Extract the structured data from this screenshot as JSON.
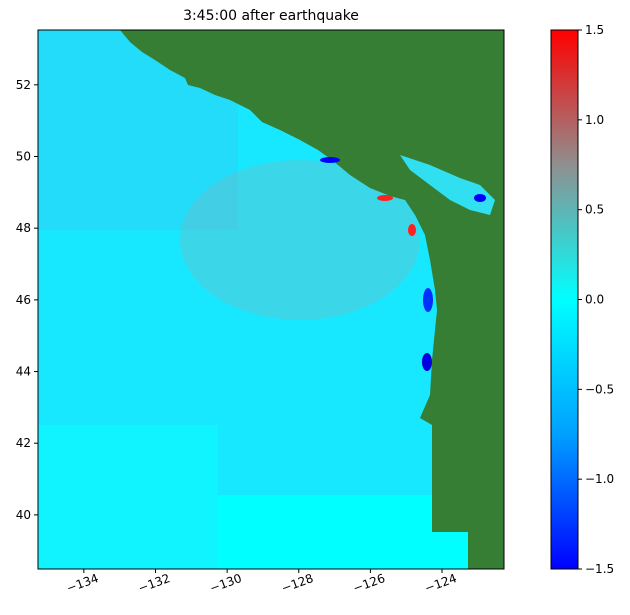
{
  "chart_data": {
    "type": "heatmap",
    "title": "3:45:00 after earthquake",
    "xlim": [
      -135.28,
      -122.27
    ],
    "ylim": [
      38.49,
      53.53
    ],
    "xticks": [
      {
        "value": -134,
        "label": "−134"
      },
      {
        "value": -132,
        "label": "−132"
      },
      {
        "value": -130,
        "label": "−130"
      },
      {
        "value": -128,
        "label": "−128"
      },
      {
        "value": -126,
        "label": "−126"
      },
      {
        "value": -124,
        "label": "−124"
      }
    ],
    "yticks": [
      40,
      42,
      44,
      46,
      48,
      50,
      52
    ],
    "colorbar": {
      "lim": [
        -1.5,
        1.5
      ],
      "ticks": [
        {
          "value": -1.5,
          "label": "−1.5"
        },
        {
          "value": -1.0,
          "label": "−1.0"
        },
        {
          "value": -0.5,
          "label": "−0.5"
        },
        {
          "value": 0,
          "label": "0.0"
        },
        0.5,
        {
          "value": 1.0,
          "label": "1.0"
        },
        1.5
      ],
      "colors": [
        "#0000ff",
        "#00a0ff",
        "#00ffff",
        "#8f8f8f",
        "#ff0000"
      ]
    },
    "land_color": "#367e33"
  }
}
